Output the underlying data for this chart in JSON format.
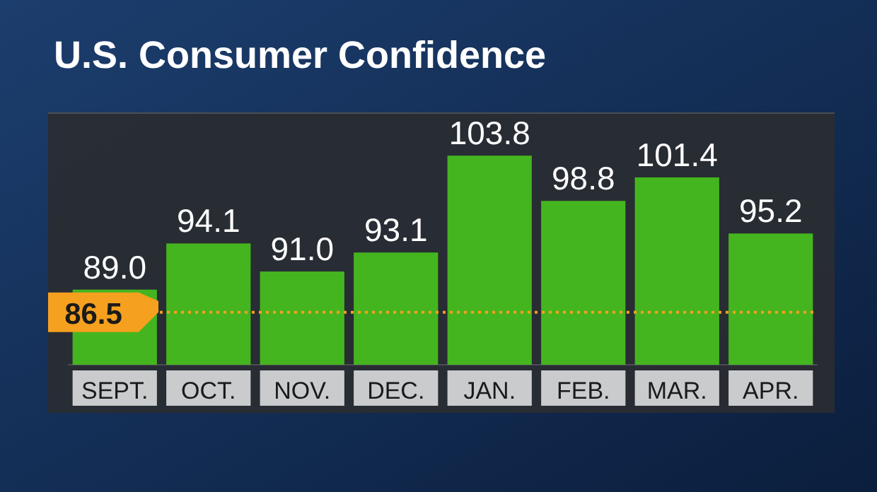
{
  "chart_data": {
    "type": "bar",
    "title": "U.S. Consumer Confidence",
    "categories": [
      "SEPT.",
      "OCT.",
      "NOV.",
      "DEC.",
      "JAN.",
      "FEB.",
      "MAR.",
      "APR."
    ],
    "values": [
      89.0,
      94.1,
      91.0,
      93.1,
      103.8,
      98.8,
      101.4,
      95.2
    ],
    "value_labels": [
      "89.0",
      "94.1",
      "91.0",
      "93.1",
      "103.8",
      "98.8",
      "101.4",
      "95.2"
    ],
    "color": "#45b51f",
    "ylim": [
      80.7,
      108.5
    ],
    "ref_lines": [
      {
        "axis": "y",
        "value": 86.5,
        "label": "86.5",
        "color": "#f5a01e",
        "line_style": "dotted"
      }
    ]
  }
}
